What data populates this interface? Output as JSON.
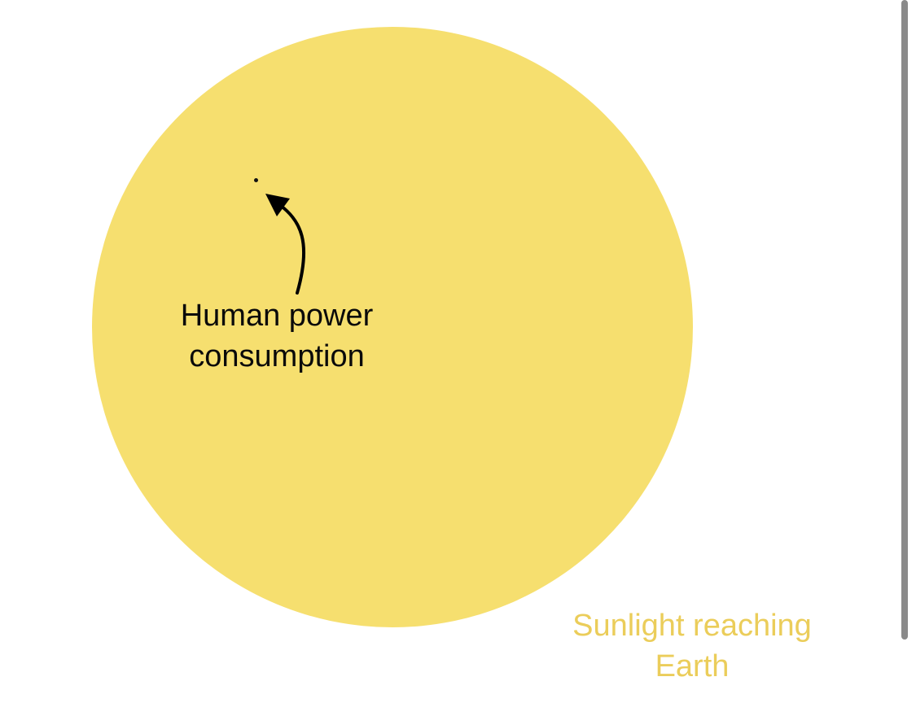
{
  "diagram": {
    "large_circle_label": [
      "Sunlight reaching",
      "Earth"
    ],
    "small_dot_label": [
      "Human power",
      "consumption"
    ],
    "colors": {
      "sunlight": "#f6df6f",
      "sunlight_label": "#ebcd5a",
      "human": "#111111",
      "arrow": "#000000"
    }
  },
  "caption": {
    "text": ""
  }
}
